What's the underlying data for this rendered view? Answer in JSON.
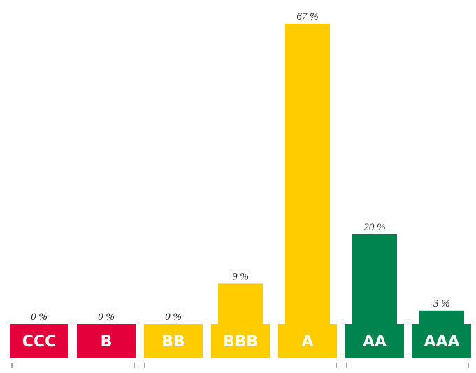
{
  "chart_data": {
    "type": "bar",
    "categories": [
      "CCC",
      "B",
      "BB",
      "BBB",
      "A",
      "AA",
      "AAA"
    ],
    "values": [
      0,
      0,
      0,
      9,
      67,
      20,
      3
    ],
    "value_labels": [
      "0 %",
      "0 %",
      "0 %",
      "9 %",
      "67 %",
      "20 %",
      "3 %"
    ],
    "colors": [
      "#e4003a",
      "#e4003a",
      "#ffcc00",
      "#ffcc00",
      "#ffcc00",
      "#00844f",
      "#00844f"
    ],
    "ylim": [
      0,
      67
    ]
  }
}
